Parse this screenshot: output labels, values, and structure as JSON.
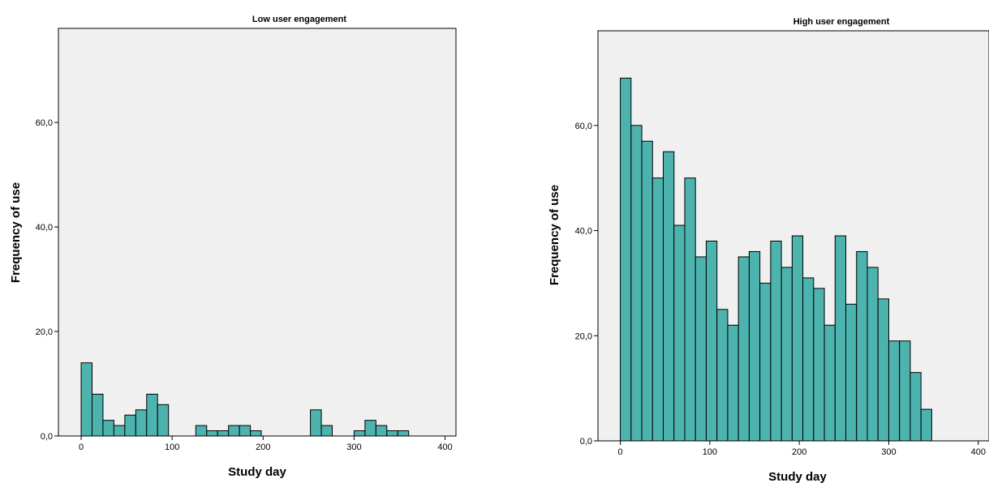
{
  "chart_data": [
    {
      "type": "bar",
      "title": "Low user engagement",
      "xlabel": "Study day",
      "ylabel": "Frequency of use",
      "xlim": [
        -25,
        412
      ],
      "ylim": [
        0,
        78
      ],
      "xticks": [
        0,
        100,
        200,
        300,
        400
      ],
      "xtick_labels": [
        "0",
        "100",
        "200",
        "300",
        "400"
      ],
      "yticks": [
        0,
        20,
        40,
        60
      ],
      "ytick_labels": [
        "0,0",
        "20,0",
        "40,0",
        "60,0"
      ],
      "bin_width": 12,
      "bins": [
        {
          "start": 0,
          "value": 14
        },
        {
          "start": 12,
          "value": 8
        },
        {
          "start": 24,
          "value": 3
        },
        {
          "start": 36,
          "value": 2
        },
        {
          "start": 48,
          "value": 4
        },
        {
          "start": 60,
          "value": 5
        },
        {
          "start": 72,
          "value": 8
        },
        {
          "start": 84,
          "value": 6
        },
        {
          "start": 126,
          "value": 2
        },
        {
          "start": 138,
          "value": 1
        },
        {
          "start": 150,
          "value": 1
        },
        {
          "start": 162,
          "value": 2
        },
        {
          "start": 174,
          "value": 2
        },
        {
          "start": 186,
          "value": 1
        },
        {
          "start": 252,
          "value": 5
        },
        {
          "start": 264,
          "value": 2
        },
        {
          "start": 300,
          "value": 1
        },
        {
          "start": 312,
          "value": 3
        },
        {
          "start": 324,
          "value": 2
        },
        {
          "start": 336,
          "value": 1
        },
        {
          "start": 348,
          "value": 1
        }
      ],
      "grid": false,
      "bar_color": "#4db3ae",
      "background_color": "#f0f0f0"
    },
    {
      "type": "bar",
      "title": "High user engagement",
      "xlabel": "Study day",
      "ylabel": "Frequency of use",
      "xlim": [
        -25,
        412
      ],
      "ylim": [
        0,
        78
      ],
      "xticks": [
        0,
        100,
        200,
        300,
        400
      ],
      "xtick_labels": [
        "0",
        "100",
        "200",
        "300",
        "400"
      ],
      "yticks": [
        0,
        20,
        40,
        60
      ],
      "ytick_labels": [
        "0,0",
        "20,0",
        "40,0",
        "60,0"
      ],
      "bin_width": 12,
      "bins": [
        {
          "start": 0,
          "value": 69
        },
        {
          "start": 12,
          "value": 60
        },
        {
          "start": 24,
          "value": 57
        },
        {
          "start": 36,
          "value": 50
        },
        {
          "start": 48,
          "value": 55
        },
        {
          "start": 60,
          "value": 41
        },
        {
          "start": 72,
          "value": 50
        },
        {
          "start": 84,
          "value": 35
        },
        {
          "start": 96,
          "value": 38
        },
        {
          "start": 108,
          "value": 25
        },
        {
          "start": 120,
          "value": 22
        },
        {
          "start": 132,
          "value": 35
        },
        {
          "start": 144,
          "value": 36
        },
        {
          "start": 156,
          "value": 30
        },
        {
          "start": 168,
          "value": 38
        },
        {
          "start": 180,
          "value": 33
        },
        {
          "start": 192,
          "value": 39
        },
        {
          "start": 204,
          "value": 31
        },
        {
          "start": 216,
          "value": 29
        },
        {
          "start": 228,
          "value": 22
        },
        {
          "start": 240,
          "value": 39
        },
        {
          "start": 252,
          "value": 26
        },
        {
          "start": 264,
          "value": 36
        },
        {
          "start": 276,
          "value": 33
        },
        {
          "start": 288,
          "value": 27
        },
        {
          "start": 300,
          "value": 19
        },
        {
          "start": 312,
          "value": 19
        },
        {
          "start": 324,
          "value": 13
        },
        {
          "start": 336,
          "value": 6
        }
      ],
      "grid": false,
      "bar_color": "#4db3ae",
      "background_color": "#f0f0f0"
    }
  ]
}
